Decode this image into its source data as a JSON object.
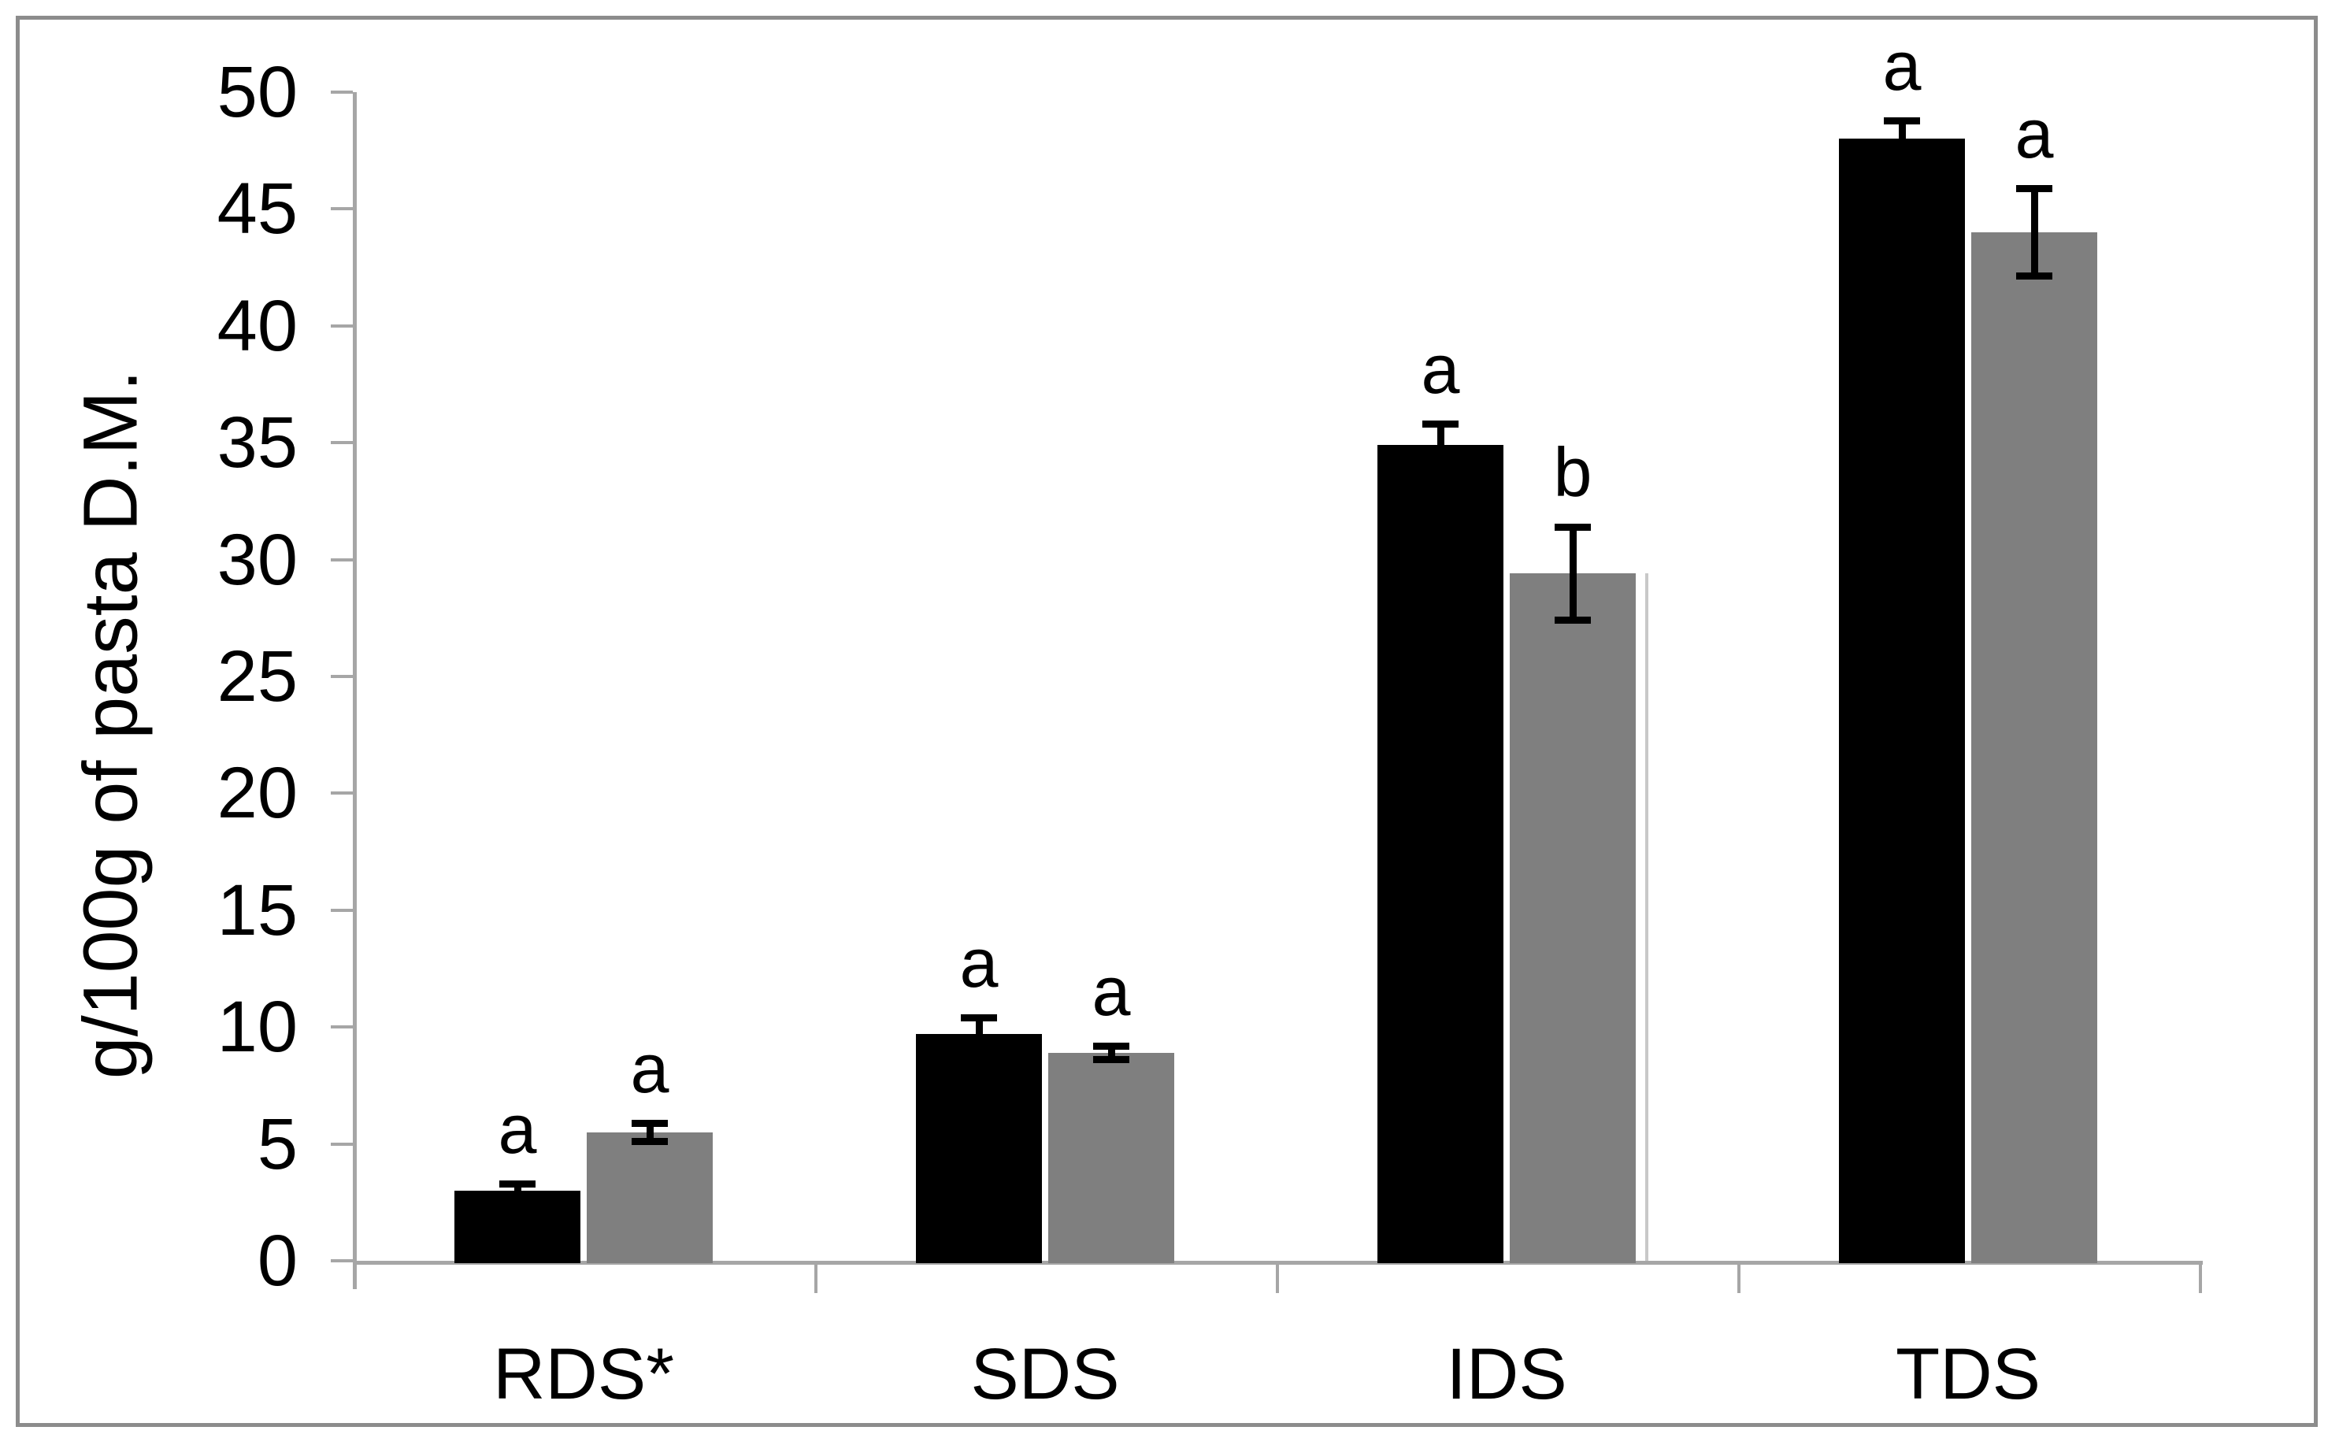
{
  "chart_data": {
    "type": "bar",
    "title": "",
    "xlabel": "",
    "ylabel": "g/100g of pasta D.M.",
    "ylim": [
      0,
      50
    ],
    "yticks": [
      0,
      5,
      10,
      15,
      20,
      25,
      30,
      35,
      40,
      45,
      50
    ],
    "grid": false,
    "legend": null,
    "error_bars": true,
    "categories": [
      "RDS*",
      "SDS",
      "IDS",
      "TDS"
    ],
    "series": [
      {
        "name": "black-bars",
        "color": "#000000",
        "values": [
          3.0,
          9.7,
          34.9,
          48.0
        ],
        "errors": [
          0.3,
          0.7,
          0.9,
          0.8
        ],
        "letters": [
          "a",
          "a",
          "a",
          "a"
        ]
      },
      {
        "name": "gray-bars",
        "color": "#7F7F7F",
        "values": [
          5.5,
          8.9,
          29.4,
          44.0
        ],
        "errors": [
          0.4,
          0.3,
          2.0,
          1.9
        ],
        "letters": [
          "a",
          "a",
          "b",
          "a"
        ]
      }
    ],
    "colors": {
      "axis": "#A6A6A6",
      "frame_border": "#8C8C8C",
      "error_bar": "#000000",
      "text": "#000000",
      "artifact_line": "#C8C8C8"
    }
  }
}
